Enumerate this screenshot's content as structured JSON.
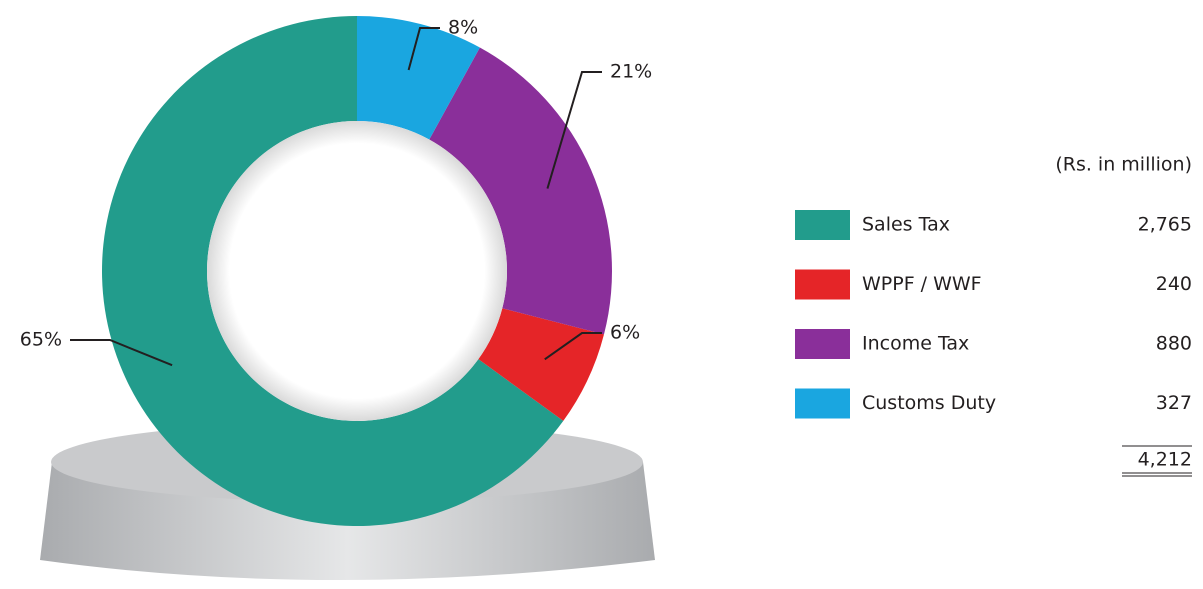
{
  "chart_data": {
    "type": "donut",
    "categories": [
      "Sales Tax",
      "WPPF / WWF",
      "Income Tax",
      "Customs Duty"
    ],
    "values": [
      65,
      6,
      21,
      8
    ],
    "value_labels": [
      "65%",
      "6%",
      "21%",
      "8%"
    ],
    "colors": [
      "#229c8c",
      "#e52528",
      "#8a2f9a",
      "#1aa6e0"
    ],
    "unit": "(Rs. in million)",
    "amounts": [
      "2,765",
      "240",
      "880",
      "327"
    ],
    "total": "4,212"
  }
}
